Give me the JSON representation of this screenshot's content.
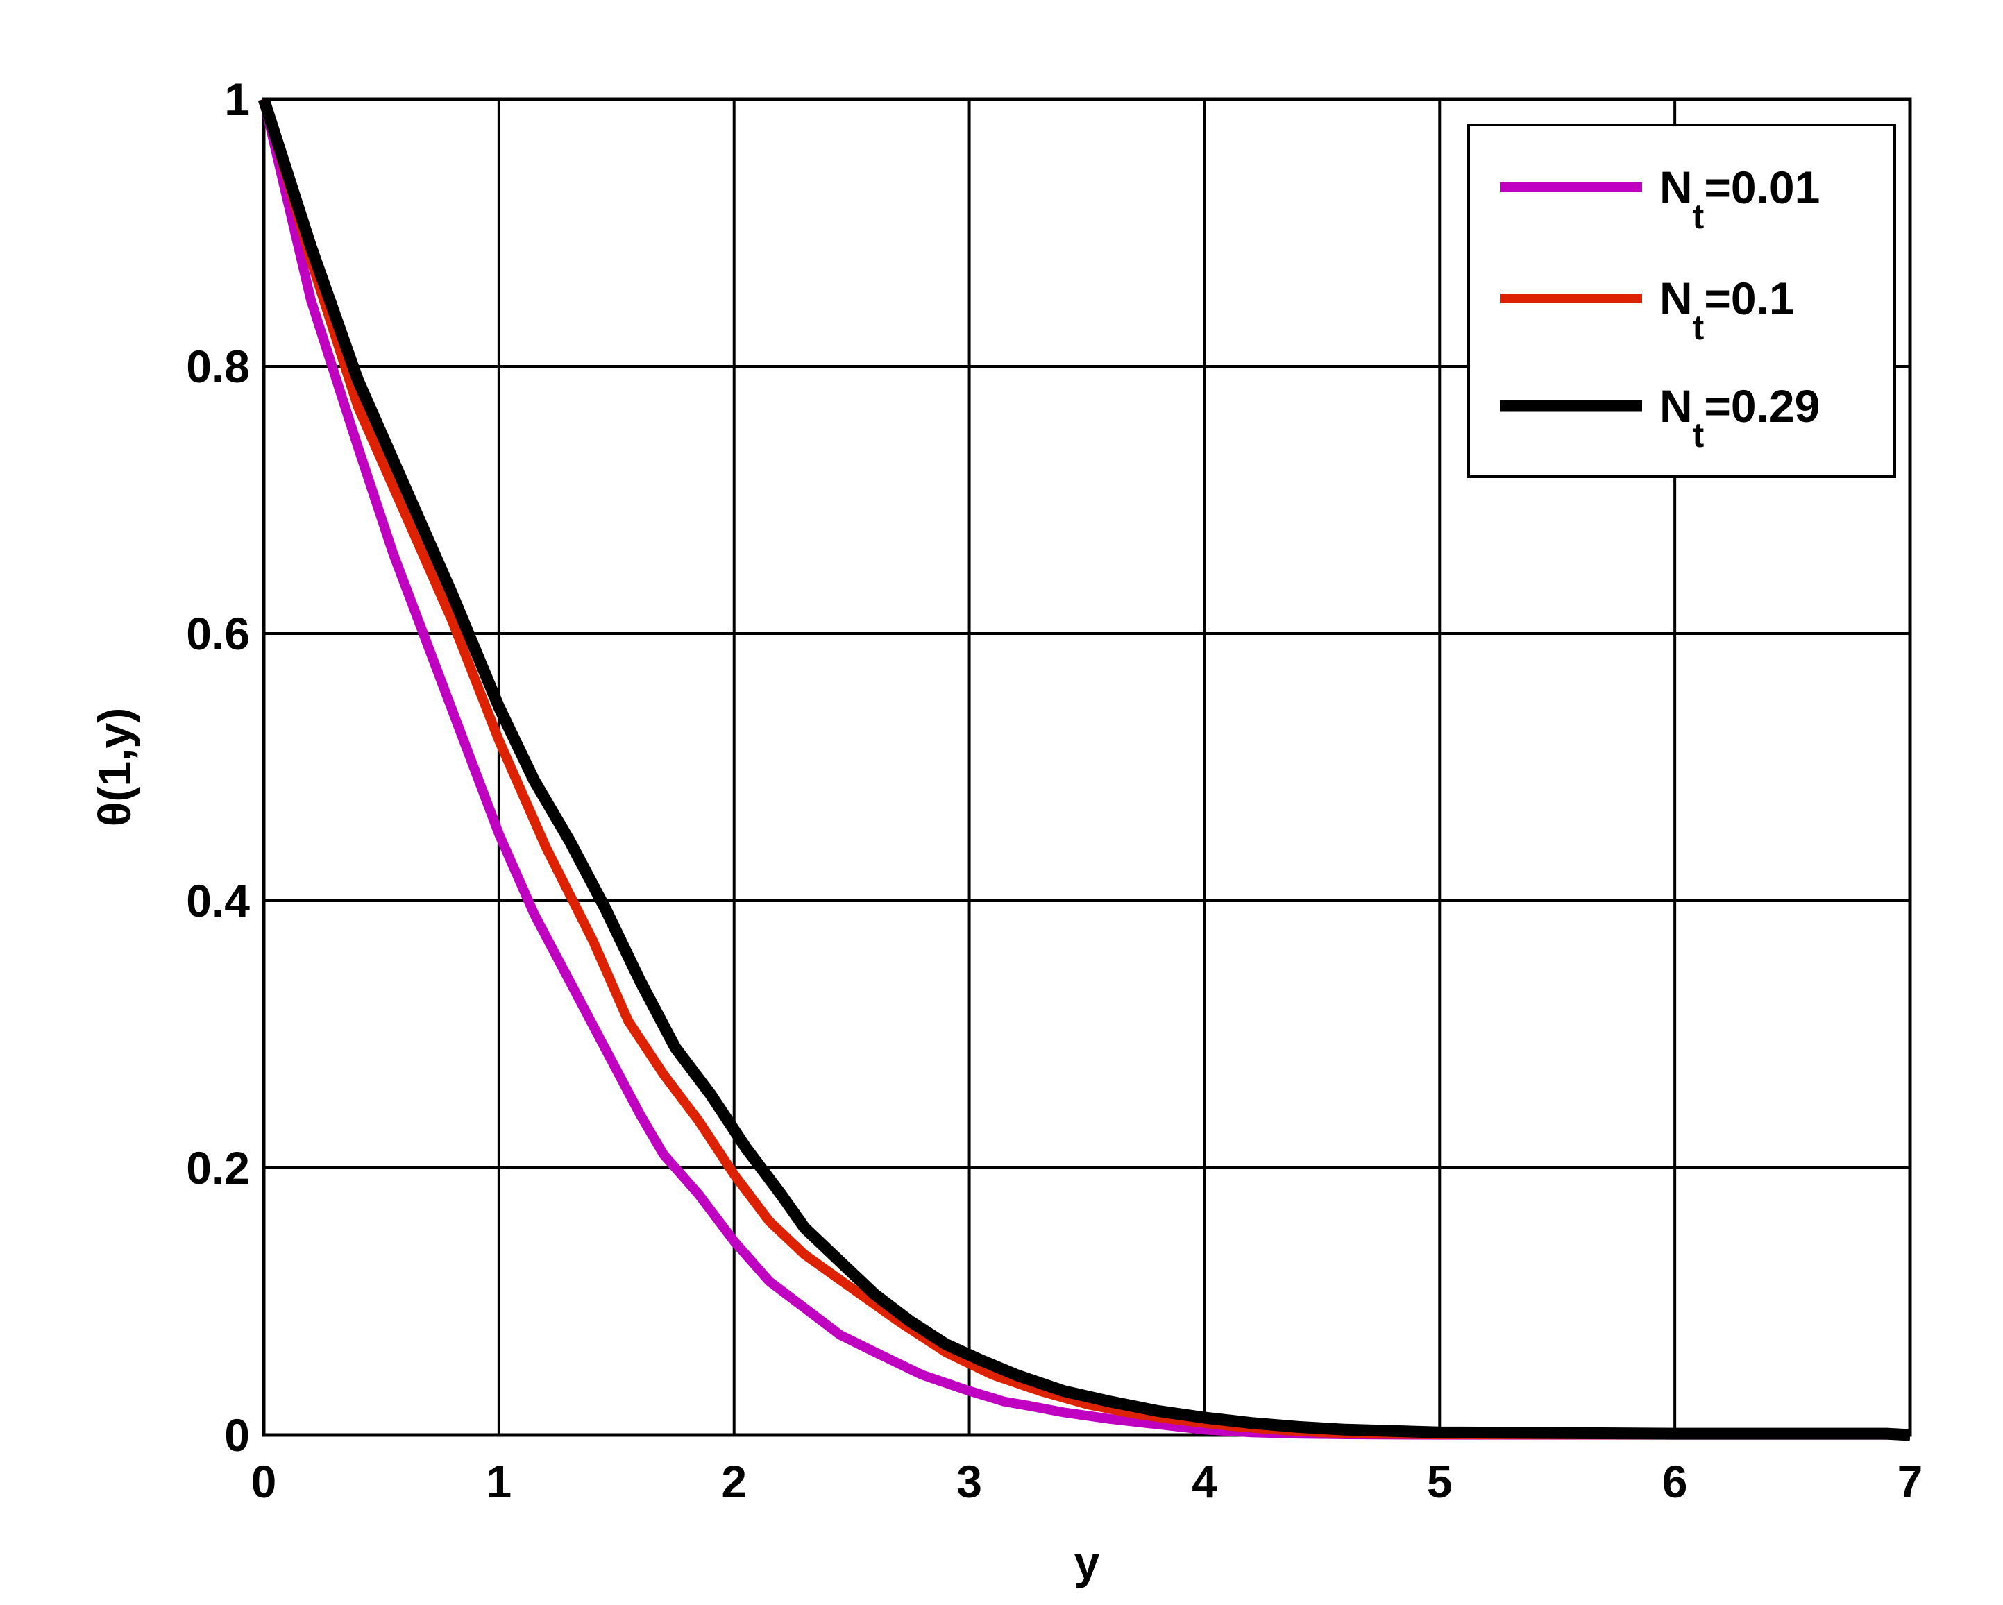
{
  "chart_data": {
    "type": "line",
    "title": "",
    "xlabel": "y",
    "ylabel": "θ(1,y)",
    "xlim": [
      0,
      7
    ],
    "ylim": [
      0,
      1
    ],
    "xticks": [
      "0",
      "1",
      "2",
      "3",
      "4",
      "5",
      "6",
      "7"
    ],
    "yticks": [
      "0",
      "0.2",
      "0.4",
      "0.6",
      "0.8",
      "1"
    ],
    "grid": true,
    "legend_position": "top-right",
    "series": [
      {
        "name": "N_t=0.01",
        "label_main": "N",
        "label_sub": "t",
        "label_value": "=0.01",
        "color": "#c000c0",
        "x": [
          0,
          0.2,
          0.4,
          0.55,
          0.7,
          0.85,
          1.0,
          1.15,
          1.3,
          1.45,
          1.6,
          1.7,
          1.85,
          2.0,
          2.15,
          2.3,
          2.45,
          2.6,
          2.8,
          3.0,
          3.15,
          3.25,
          3.4,
          3.6,
          3.8,
          4.0,
          4.2,
          4.4,
          4.6,
          4.8,
          5.0,
          6.0,
          6.9,
          7.0
        ],
        "y": [
          1.0,
          0.85,
          0.74,
          0.66,
          0.59,
          0.52,
          0.45,
          0.39,
          0.34,
          0.29,
          0.24,
          0.21,
          0.18,
          0.145,
          0.115,
          0.095,
          0.075,
          0.062,
          0.045,
          0.033,
          0.025,
          0.022,
          0.017,
          0.012,
          0.008,
          0.004,
          0.002,
          0.001,
          0.0005,
          0.0003,
          0.0002,
          0.0002,
          0.0002,
          0.0
        ]
      },
      {
        "name": "N_t=0.1",
        "label_main": "N",
        "label_sub": "t",
        "label_value": "=0.1",
        "color": "#dd2200",
        "x": [
          0,
          0.2,
          0.4,
          0.6,
          0.8,
          1.0,
          1.2,
          1.4,
          1.55,
          1.7,
          1.85,
          2.0,
          2.15,
          2.3,
          2.5,
          2.7,
          2.9,
          3.1,
          3.3,
          3.5,
          3.7,
          3.9,
          4.1,
          4.3,
          4.5,
          4.7,
          5.0,
          6.0,
          6.9,
          7.0
        ],
        "y": [
          1.0,
          0.88,
          0.77,
          0.69,
          0.61,
          0.52,
          0.44,
          0.37,
          0.31,
          0.27,
          0.235,
          0.195,
          0.16,
          0.135,
          0.11,
          0.085,
          0.062,
          0.045,
          0.033,
          0.023,
          0.016,
          0.011,
          0.007,
          0.004,
          0.002,
          0.001,
          0.0005,
          0.0003,
          0.0003,
          0.0
        ]
      },
      {
        "name": "N_t=0.29",
        "label_main": "N",
        "label_sub": "t",
        "label_value": "=0.29",
        "color": "#000000",
        "x": [
          0,
          0.2,
          0.4,
          0.6,
          0.8,
          1.0,
          1.15,
          1.3,
          1.45,
          1.6,
          1.75,
          1.9,
          2.05,
          2.2,
          2.3,
          2.45,
          2.6,
          2.75,
          2.9,
          3.05,
          3.2,
          3.4,
          3.6,
          3.8,
          4.0,
          4.2,
          4.4,
          4.6,
          4.8,
          5.0,
          6.0,
          6.9,
          7.0
        ],
        "y": [
          1.0,
          0.89,
          0.79,
          0.71,
          0.63,
          0.545,
          0.49,
          0.445,
          0.395,
          0.34,
          0.29,
          0.255,
          0.215,
          0.18,
          0.155,
          0.13,
          0.105,
          0.085,
          0.068,
          0.056,
          0.045,
          0.033,
          0.025,
          0.018,
          0.013,
          0.009,
          0.006,
          0.004,
          0.003,
          0.002,
          0.001,
          0.001,
          0.0
        ]
      }
    ]
  }
}
